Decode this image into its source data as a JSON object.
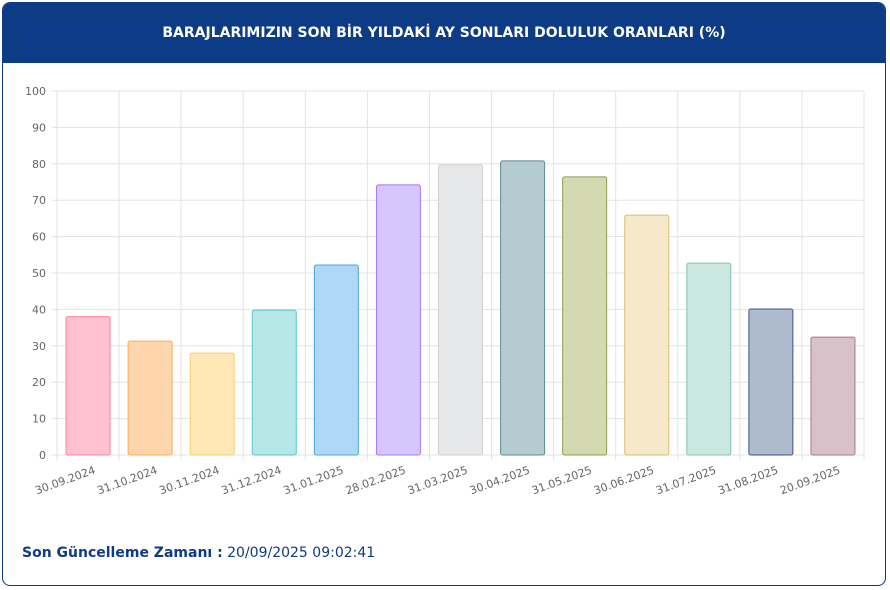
{
  "chart_data": {
    "type": "bar",
    "title": "BARAJLARIMIZIN SON BİR YILDAKİ AY SONLARI DOLULUK ORANLARI (%)",
    "categories": [
      "30.09.2024",
      "31.10.2024",
      "30.11.2024",
      "31.12.2024",
      "31.01.2025",
      "28.02.2025",
      "31.03.2025",
      "30.04.2025",
      "31.05.2025",
      "30.06.2025",
      "31.07.2025",
      "31.08.2025",
      "20.09.2025"
    ],
    "values": [
      38.0,
      31.3,
      28.0,
      39.8,
      52.2,
      74.2,
      79.7,
      80.8,
      76.4,
      65.9,
      52.7,
      40.1,
      32.4
    ],
    "colors": [
      "#ffc1d0",
      "#ffd6ab",
      "#ffe8b5",
      "#b5e7e7",
      "#aed8f6",
      "#d7c5fd",
      "#e7e8ea",
      "#b4cbcf",
      "#d4d9b1",
      "#f6e9c9",
      "#cae7e0",
      "#aebbcf",
      "#d9c1c9"
    ],
    "border_colors": [
      "#ff7f9e",
      "#ffa95a",
      "#f5cd6a",
      "#5cc6c6",
      "#4aa4e0",
      "#a07bf5",
      "#cfd0d4",
      "#5e8d93",
      "#8e9c4f",
      "#d9bd75",
      "#86c1b2",
      "#3d5282",
      "#a4788a"
    ],
    "ylim": [
      0,
      100
    ],
    "yticks": [
      0,
      10,
      20,
      30,
      40,
      50,
      60,
      70,
      80,
      90,
      100
    ],
    "grid": true
  },
  "footer": {
    "label": "Son Güncelleme Zamanı :",
    "value": "20/09/2025 09:02:41"
  }
}
